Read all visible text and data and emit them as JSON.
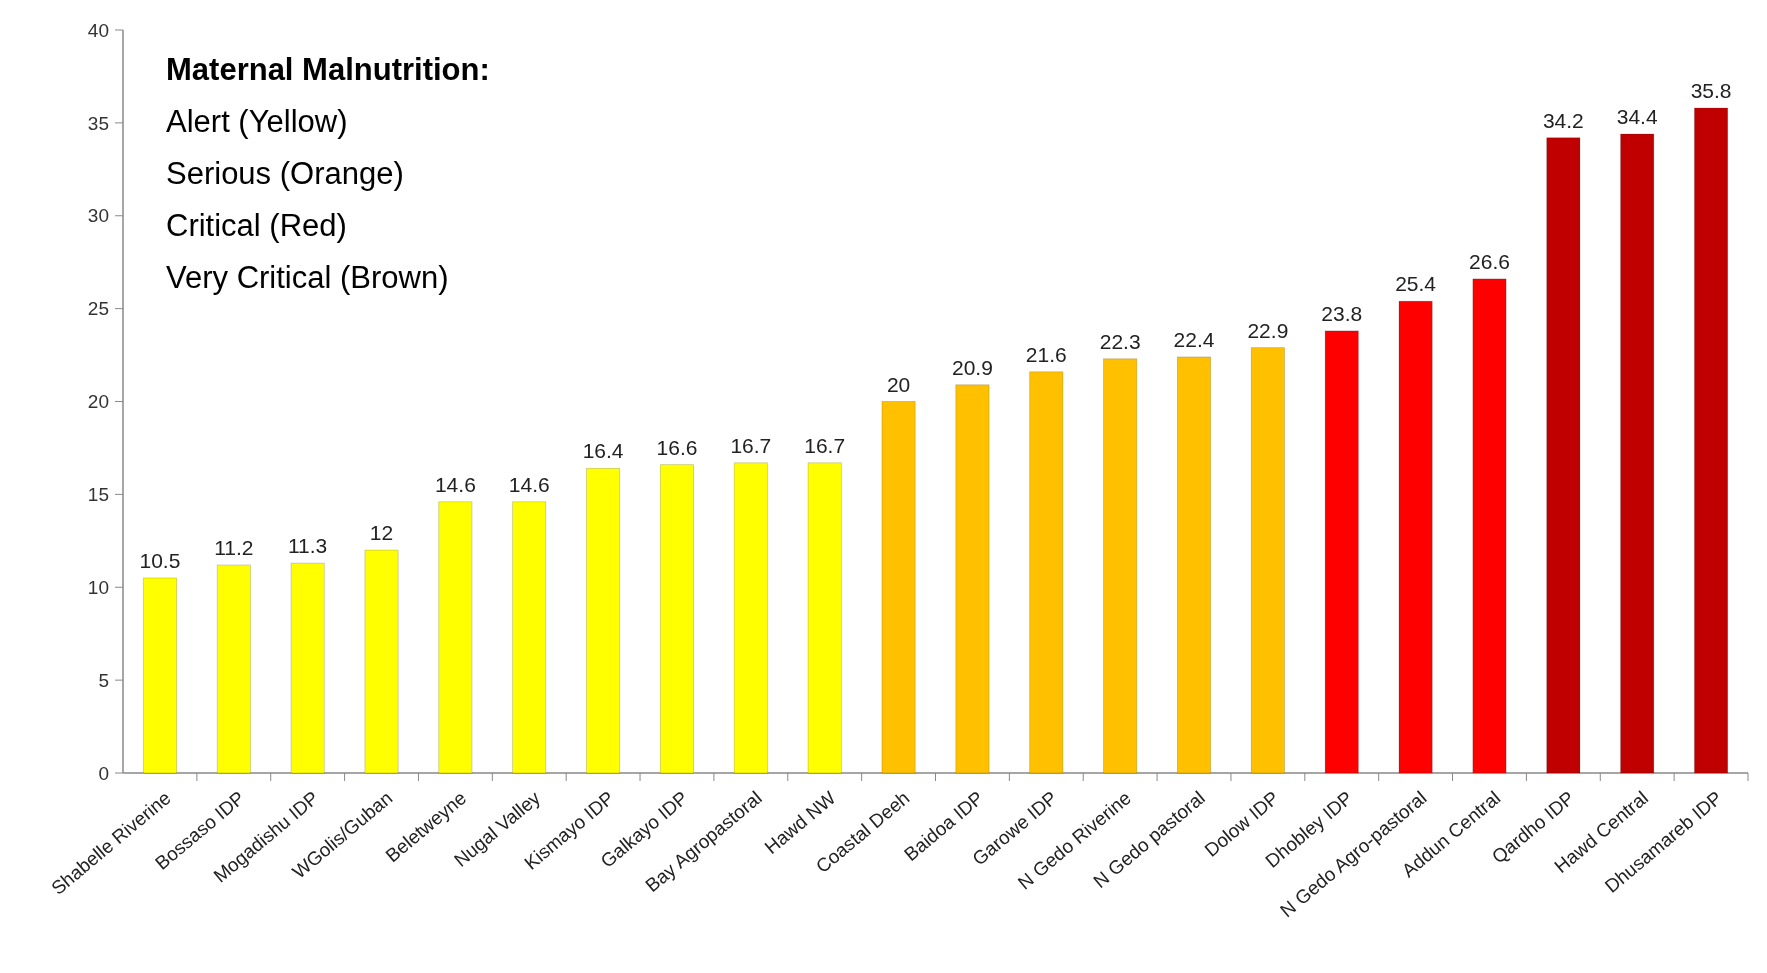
{
  "chart_data": {
    "type": "bar",
    "title": "Maternal Malnutrition:",
    "annotations": [
      "Alert  (Yellow)",
      "Serious (Orange)",
      "Critical (Red)",
      "Very Critical (Brown)"
    ],
    "categories": [
      "Shabelle Riverine",
      "Bossaso IDP",
      "Mogadishu IDP",
      "WGolis/Guban",
      "Beletweyne",
      "Nugal Valley",
      "Kismayo IDP",
      "Galkayo IDP",
      "Bay Agropastoral",
      "Hawd NW",
      "Coastal Deeh",
      "Baidoa IDP",
      "Garowe IDP",
      "N Gedo Riverine",
      "N Gedo pastoral",
      "Dolow IDP",
      "Dhobley IDP",
      "N Gedo Agro-pastoral",
      "Addun Central",
      "Qardho IDP",
      "Hawd Central",
      "Dhusamareb IDP"
    ],
    "values": [
      10.5,
      11.2,
      11.3,
      12,
      14.6,
      14.6,
      16.4,
      16.6,
      16.7,
      16.7,
      20,
      20.9,
      21.6,
      22.3,
      22.4,
      22.9,
      23.8,
      25.4,
      26.6,
      34.2,
      34.4,
      35.8
    ],
    "colors": [
      "#ffff00",
      "#ffff00",
      "#ffff00",
      "#ffff00",
      "#ffff00",
      "#ffff00",
      "#ffff00",
      "#ffff00",
      "#ffff00",
      "#ffff00",
      "#ffc000",
      "#ffc000",
      "#ffc000",
      "#ffc000",
      "#ffc000",
      "#ffc000",
      "#ff0000",
      "#ff0000",
      "#ff0000",
      "#c00000",
      "#c00000",
      "#c00000"
    ],
    "ylim": [
      0,
      40
    ],
    "yticks": [
      0,
      5,
      10,
      15,
      20,
      25,
      30,
      35,
      40
    ],
    "data_labels": true,
    "grid": false
  }
}
